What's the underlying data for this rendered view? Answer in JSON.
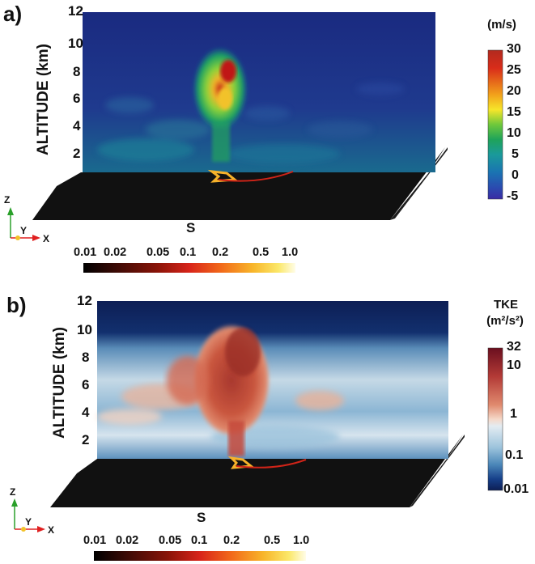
{
  "panels": [
    {
      "label": "a)",
      "yaxis_title": "ALTITUDE (km)",
      "yticks": [
        "12",
        "10",
        "8",
        "6",
        "4",
        "2"
      ],
      "colorbar": {
        "title_line1": "(m/s)",
        "title_line2": "",
        "ticks": [
          "30",
          "25",
          "20",
          "15",
          "10",
          "5",
          "0",
          "-5"
        ],
        "colors": [
          "#b22a1e",
          "#d92c1a",
          "#f2a21b",
          "#f6e62a",
          "#6ec83b",
          "#1fa35a",
          "#1a9a9a",
          "#1a74b2",
          "#2a4cb0",
          "#3a2ba4"
        ]
      },
      "s_title": "S",
      "s_ticks": [
        "0.01",
        "0.02",
        "0.05",
        "0.1",
        "0.2",
        "0.5",
        "1.0"
      ]
    },
    {
      "label": "b)",
      "yaxis_title": "ALTITUDE (km)",
      "yticks": [
        "12",
        "10",
        "8",
        "6",
        "4",
        "2"
      ],
      "colorbar": {
        "title_line1": "TKE",
        "title_line2": "(m²/s²)",
        "ticks": [
          "32",
          "10",
          "1",
          "0.1",
          "0.01"
        ],
        "colors": [
          "#6b0f1f",
          "#b33a36",
          "#e08a6e",
          "#f5d8c8",
          "#e3ecf2",
          "#9cc3dc",
          "#4a86b8",
          "#17408a",
          "#0d1e55"
        ]
      },
      "s_title": "S",
      "s_ticks": [
        "0.01",
        "0.02",
        "0.05",
        "0.1",
        "0.2",
        "0.5",
        "1.0"
      ]
    }
  ],
  "orientation_axes": {
    "z": "Z",
    "y": "Y",
    "x": "X"
  },
  "s_colormap": [
    "#000000",
    "#3a0a05",
    "#8a1408",
    "#d8241a",
    "#f26a1a",
    "#f8b62a",
    "#fbe86a",
    "#fffde8"
  ]
}
